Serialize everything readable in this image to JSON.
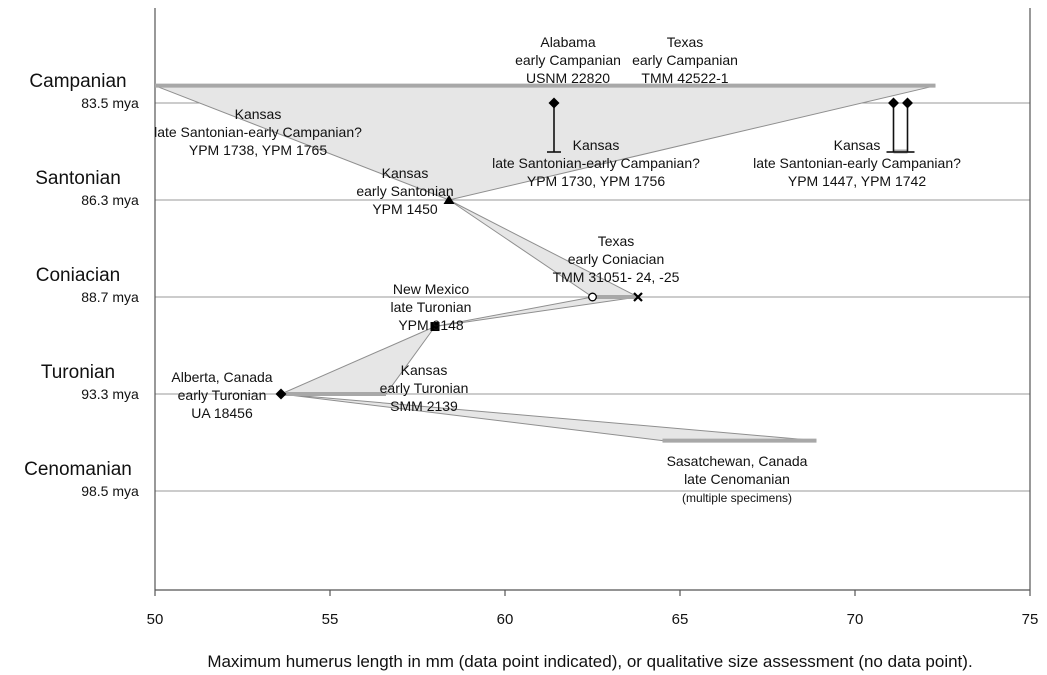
{
  "chart_data": {
    "type": "scatter",
    "title": "",
    "xlabel": "Maximum humerus length in mm (data point indicated), or qualitative size assessment (no data point).",
    "ylabel": "",
    "xlim": [
      50,
      75
    ],
    "x_ticks": [
      50,
      55,
      60,
      65,
      70,
      75
    ],
    "grid": "horizontal lines at stage boundaries",
    "stages": [
      {
        "name": "Campanian",
        "age_label": "83.5 mya",
        "age": 83.5
      },
      {
        "name": "Santonian",
        "age_label": "86.3 mya",
        "age": 86.3
      },
      {
        "name": "Coniacian",
        "age_label": "88.7 mya",
        "age": 88.7
      },
      {
        "name": "Turonian",
        "age_label": "93.3 mya",
        "age": 93.3
      },
      {
        "name": "Cenomanian",
        "age_label": "98.5 mya",
        "age": 98.5
      }
    ],
    "points": [
      {
        "x": 61.4,
        "age": 83.5,
        "marker": "diamond",
        "error_to_age": 86.3,
        "lines": [
          "Alabama",
          "early Campanian",
          "USNM 22820"
        ]
      },
      {
        "x": 71.1,
        "age": 83.5,
        "marker": "diamond",
        "error_to_age": 86.3,
        "lines": [
          "Texas",
          "early Campanian",
          "TMM 42522-1"
        ]
      },
      {
        "x": 71.5,
        "age": 83.5,
        "marker": "diamond",
        "error_to_age": 86.3,
        "lines": []
      },
      {
        "x": 58.4,
        "age": 86.3,
        "marker": "triangle",
        "lines": [
          "Kansas",
          "early Santonian",
          "YPM 1450"
        ]
      },
      {
        "x": 62.5,
        "age": 88.7,
        "marker": "open-circle",
        "lines": []
      },
      {
        "x": 63.8,
        "age": 88.7,
        "marker": "cross",
        "lines": [
          "Texas",
          "early Coniacian",
          "TMM 31051- 24, -25"
        ]
      },
      {
        "x": 58.0,
        "age": 90.1,
        "marker": "square",
        "lines": [
          "New Mexico",
          "late Turonian",
          "YPM 9148"
        ]
      },
      {
        "x": 53.6,
        "age": 93.3,
        "marker": "diamond",
        "lines": [
          "Alberta, Canada",
          "early Turonian",
          "UA 18456"
        ]
      }
    ],
    "ranges": [
      {
        "x_from": 50,
        "x_to": 72.3,
        "age": 83.0,
        "lines": [
          "Kansas",
          "late Santonian-early Campanian?",
          "YPM 1738, YPM 1765"
        ]
      },
      {
        "x_from": 61.4,
        "x_to": 61.4,
        "age": 84.9,
        "lines": [
          "Kansas",
          "late Santonian-early Campanian?",
          "YPM 1730, YPM 1756"
        ]
      },
      {
        "x_from": 71.1,
        "x_to": 71.5,
        "age": 84.9,
        "lines": [
          "Kansas",
          "late Santonian-early Campanian?",
          "YPM 1447, YPM 1742"
        ]
      },
      {
        "x_from": 62.5,
        "x_to": 63.8,
        "age": 88.7,
        "lines": []
      },
      {
        "x_from": 53.6,
        "x_to": 56.6,
        "age": 93.3,
        "lines": [
          "Kansas",
          "early Turonian",
          "SMM 2139"
        ]
      },
      {
        "x_from": 64.5,
        "x_to": 68.9,
        "age": 95.8,
        "lines": [
          "Sasatchewan, Canada",
          "late Cenomanian",
          "(multiple specimens)"
        ]
      }
    ]
  }
}
